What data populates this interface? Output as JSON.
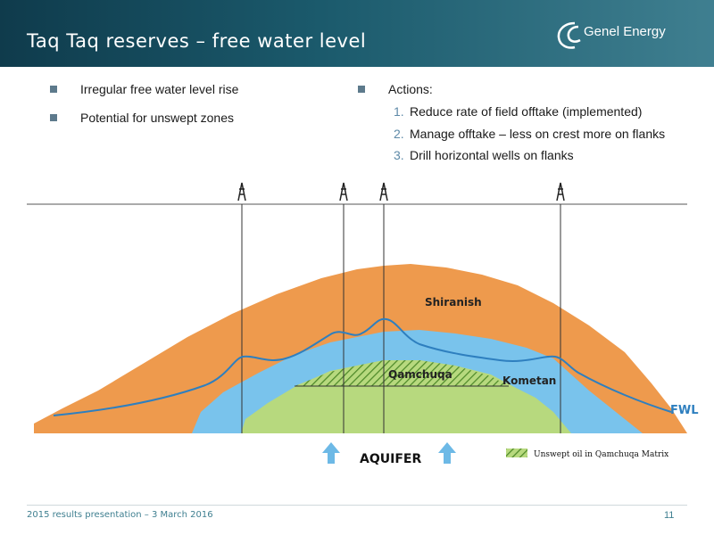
{
  "header": {
    "title": "Taq Taq reserves – free water level",
    "logo_text": "Genel Energy"
  },
  "left_bullets": [
    "Irregular free water level rise",
    "Potential for unswept zones"
  ],
  "right_bullets": {
    "heading": "Actions:",
    "items": [
      {
        "num": "1.",
        "text": "Reduce rate of field offtake (implemented)"
      },
      {
        "num": "2.",
        "text": "Manage offtake – less on crest more on flanks"
      },
      {
        "num": "3.",
        "text": "Drill horizontal wells on flanks"
      }
    ]
  },
  "diagram": {
    "labels": {
      "shiranish": "Shiranish",
      "qamchuqa": "Qamchuqa",
      "kometan": "Kometan",
      "fwl": "FWL",
      "aquifer": "AQUIFER"
    },
    "legend": "Unswept oil in Qamchuqa Matrix",
    "colors": {
      "shiranish": "#ee9a4d",
      "kometan": "#79c3ec",
      "qamchuqa": "#b7d97e",
      "fwl_line": "#2e7fbf",
      "arrow": "#6db9e6"
    },
    "wells": 4
  },
  "footer": {
    "text": "2015 results presentation – 3 March 2016",
    "page": "11"
  }
}
